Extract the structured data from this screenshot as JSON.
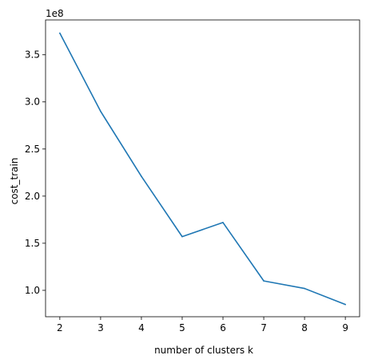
{
  "chart_data": {
    "type": "line",
    "title": "",
    "xlabel": "number of clusters k",
    "ylabel": "cost_train",
    "offset_label": "1e8",
    "x": [
      2,
      3,
      4,
      5,
      6,
      7,
      8,
      9
    ],
    "series": [
      {
        "name": "cost_train",
        "color": "#1f77b4",
        "values": [
          373000000,
          290000000,
          221000000,
          157000000,
          172000000,
          110000000,
          102000000,
          85000000
        ]
      }
    ],
    "xlim": [
      1.65,
      9.35
    ],
    "ylim": [
      72000000,
      387000000
    ],
    "x_ticks": [
      2,
      3,
      4,
      5,
      6,
      7,
      8,
      9
    ],
    "x_tick_labels": [
      "2",
      "3",
      "4",
      "5",
      "6",
      "7",
      "8",
      "9"
    ],
    "y_ticks": [
      100000000,
      150000000,
      200000000,
      250000000,
      300000000,
      350000000
    ],
    "y_tick_labels": [
      "1.0",
      "1.5",
      "2.0",
      "2.5",
      "3.0",
      "3.5"
    ],
    "grid": false,
    "legend": "none"
  }
}
